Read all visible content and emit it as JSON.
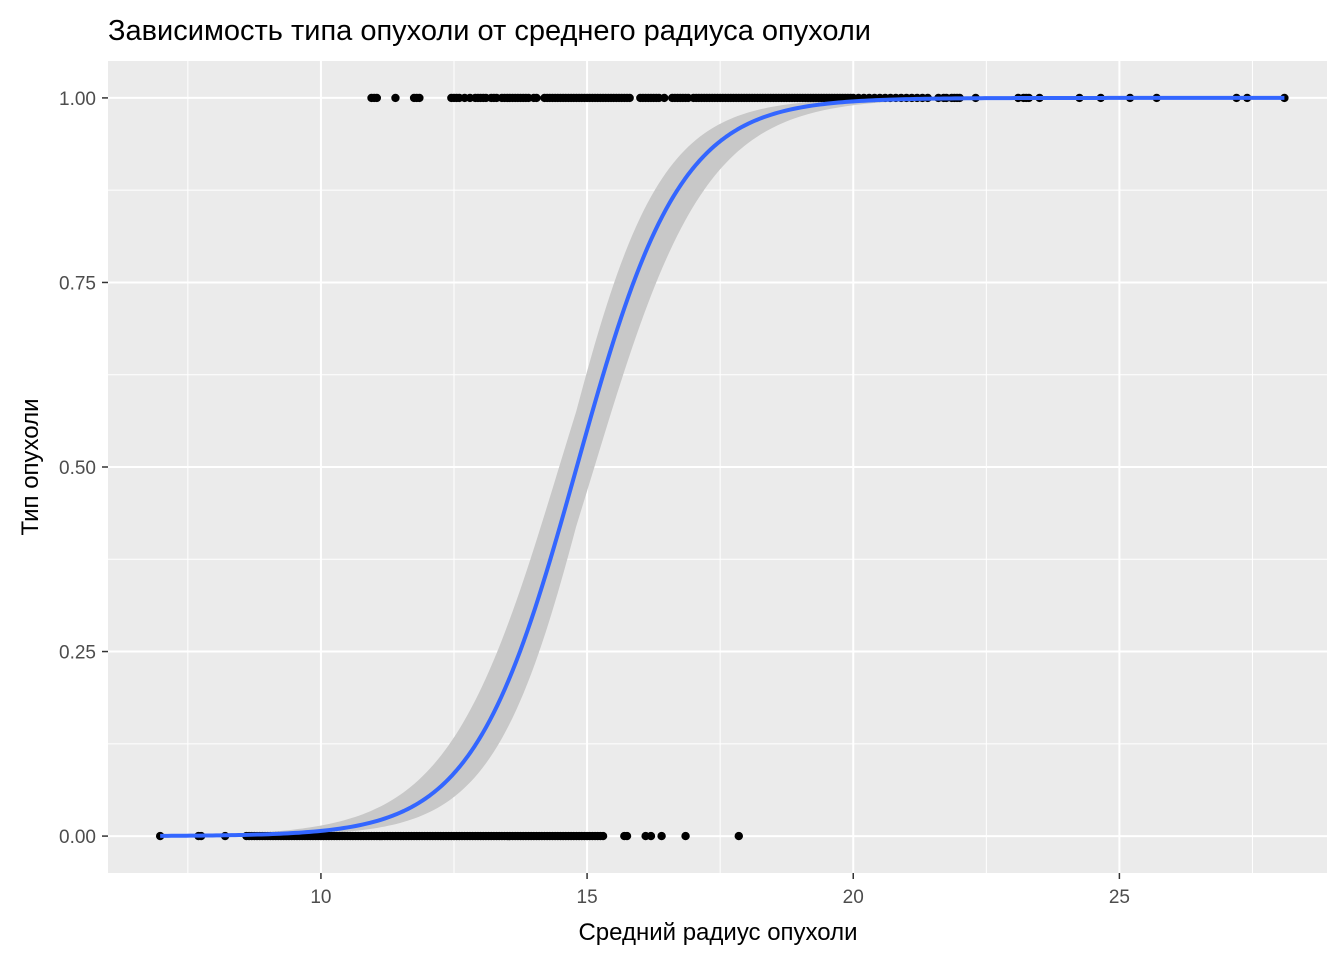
{
  "chart_data": {
    "type": "scatter",
    "title": "Зависимость типа опухоли от среднего радиуса опухоли",
    "xlabel": "Средний радиус опухоли",
    "ylabel": "Тип опухоли",
    "xlim": [
      6.0,
      28.9
    ],
    "ylim": [
      -0.05,
      1.05
    ],
    "x_ticks": [
      10,
      15,
      20,
      25
    ],
    "x_tick_labels": [
      "10",
      "15",
      "20",
      "25"
    ],
    "y_ticks": [
      0,
      0.25,
      0.5,
      0.75,
      1.0
    ],
    "y_tick_labels": [
      "0.00",
      "0.25",
      "0.50",
      "0.75",
      "1.00"
    ],
    "grid": true,
    "legend": "none",
    "colors": {
      "panel": "#ebebeb",
      "grid": "#ffffff",
      "points": "#000000",
      "fit_line": "#3366ff",
      "confidence_band": "#c8c8c8"
    },
    "series": [
      {
        "type": "scatter",
        "points_y1_x": [
          10.95,
          11.0,
          11.05,
          11.4,
          11.75,
          11.8,
          11.85,
          12.45,
          12.5,
          12.55,
          12.6,
          12.7,
          12.8,
          12.9,
          12.95,
          13.0,
          13.05,
          13.1,
          13.2,
          13.25,
          13.3,
          13.4,
          13.45,
          13.5,
          13.55,
          13.6,
          13.65,
          13.7,
          13.75,
          13.8,
          13.85,
          13.9,
          14.0,
          14.05,
          14.2,
          14.25,
          14.3,
          14.35,
          14.4,
          14.45,
          14.5,
          14.55,
          14.6,
          14.65,
          14.7,
          14.75,
          14.8,
          14.85,
          14.9,
          14.95,
          15.0,
          15.05,
          15.1,
          15.15,
          15.2,
          15.25,
          15.3,
          15.35,
          15.4,
          15.45,
          15.5,
          15.55,
          15.6,
          15.65,
          15.7,
          15.75,
          15.8,
          16.0,
          16.05,
          16.1,
          16.15,
          16.2,
          16.25,
          16.3,
          16.35,
          16.45,
          16.6,
          16.65,
          16.7,
          16.75,
          16.8,
          16.85,
          16.9,
          17.0,
          17.05,
          17.1,
          17.15,
          17.2,
          17.25,
          17.3,
          17.35,
          17.4,
          17.45,
          17.5,
          17.55,
          17.6,
          17.65,
          17.7,
          17.75,
          17.8,
          17.85,
          17.9,
          17.95,
          18.0,
          18.05,
          18.1,
          18.15,
          18.2,
          18.25,
          18.3,
          18.35,
          18.4,
          18.45,
          18.5,
          18.55,
          18.6,
          18.65,
          18.7,
          18.75,
          18.8,
          18.85,
          18.9,
          18.95,
          19.0,
          19.05,
          19.1,
          19.15,
          19.2,
          19.25,
          19.3,
          19.35,
          19.4,
          19.45,
          19.5,
          19.55,
          19.6,
          19.65,
          19.7,
          19.75,
          19.8,
          19.85,
          19.9,
          19.95,
          20.0,
          20.1,
          20.2,
          20.3,
          20.4,
          20.5,
          20.6,
          20.7,
          20.8,
          20.9,
          21.0,
          21.1,
          21.2,
          21.3,
          21.4,
          21.6,
          21.7,
          21.75,
          21.85,
          21.9,
          21.95,
          22.0,
          22.3,
          23.1,
          23.2,
          23.25,
          23.3,
          23.5,
          24.25,
          24.65,
          25.2,
          25.7,
          27.2,
          27.4,
          28.1
        ],
        "points_y0_x": [
          6.98,
          7.7,
          7.75,
          8.2,
          8.6,
          8.65,
          8.7,
          8.75,
          8.8,
          8.85,
          8.9,
          8.95,
          9.0,
          9.05,
          9.1,
          9.15,
          9.2,
          9.25,
          9.3,
          9.35,
          9.4,
          9.45,
          9.5,
          9.55,
          9.6,
          9.65,
          9.7,
          9.75,
          9.8,
          9.85,
          9.9,
          9.95,
          10.0,
          10.05,
          10.1,
          10.15,
          10.2,
          10.25,
          10.3,
          10.35,
          10.4,
          10.45,
          10.5,
          10.55,
          10.6,
          10.65,
          10.7,
          10.75,
          10.8,
          10.85,
          10.9,
          10.95,
          11.0,
          11.05,
          11.1,
          11.15,
          11.2,
          11.25,
          11.3,
          11.35,
          11.4,
          11.45,
          11.5,
          11.55,
          11.6,
          11.65,
          11.7,
          11.75,
          11.8,
          11.85,
          11.9,
          11.95,
          12.0,
          12.05,
          12.1,
          12.15,
          12.2,
          12.25,
          12.3,
          12.35,
          12.4,
          12.45,
          12.5,
          12.55,
          12.6,
          12.65,
          12.7,
          12.75,
          12.8,
          12.85,
          12.9,
          12.95,
          13.0,
          13.05,
          13.1,
          13.15,
          13.2,
          13.25,
          13.3,
          13.35,
          13.4,
          13.45,
          13.5,
          13.55,
          13.6,
          13.65,
          13.7,
          13.75,
          13.8,
          13.85,
          13.9,
          13.95,
          14.0,
          14.05,
          14.1,
          14.15,
          14.2,
          14.25,
          14.3,
          14.35,
          14.4,
          14.45,
          14.5,
          14.55,
          14.6,
          14.65,
          14.7,
          14.75,
          14.8,
          14.85,
          14.9,
          14.95,
          15.0,
          15.05,
          15.1,
          15.15,
          15.2,
          15.25,
          15.3,
          15.7,
          15.75,
          16.1,
          16.2,
          16.4,
          16.85,
          17.85
        ]
      },
      {
        "type": "line",
        "method": "logistic",
        "intercept": -15.25,
        "slope": 1.03,
        "x_range": [
          6.98,
          28.1
        ],
        "confidence_band": true
      }
    ]
  }
}
